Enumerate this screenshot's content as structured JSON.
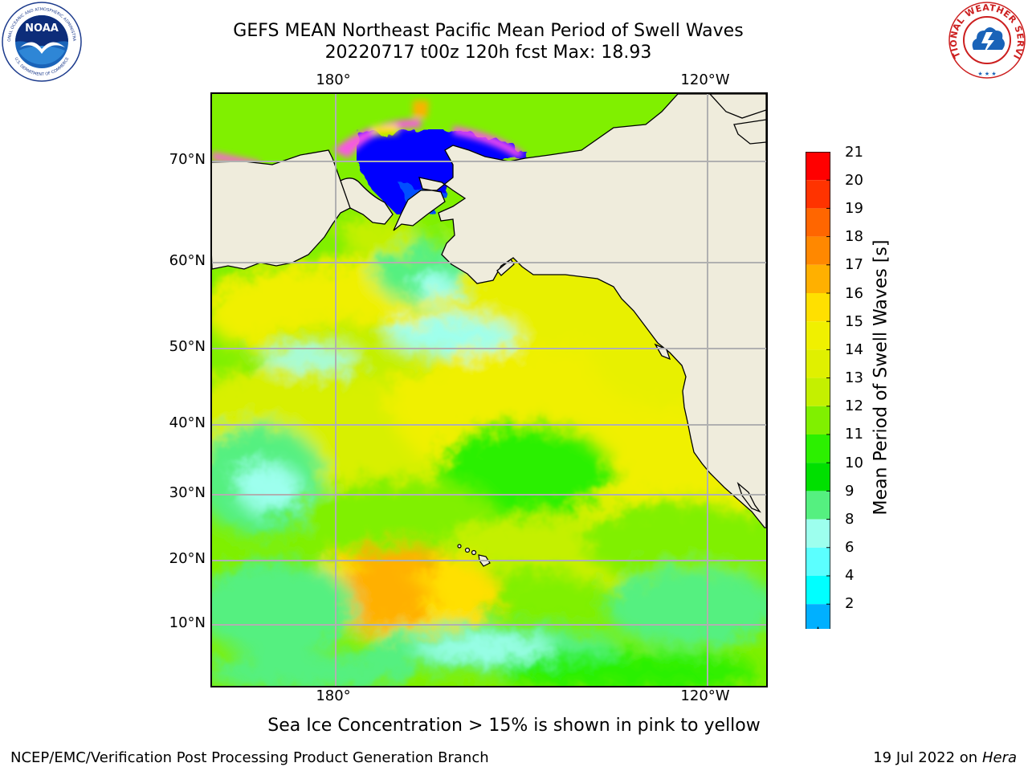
{
  "title": {
    "line1": "GEFS MEAN Northeast Pacific Mean Period of Swell Waves",
    "line2": "20220717 t00z 120h fcst   Max: 18.93"
  },
  "map": {
    "lon_labels": [
      "180°",
      "120°W"
    ],
    "lat_labels": [
      "70°N",
      "60°N",
      "50°N",
      "40°N",
      "30°N",
      "20°N",
      "10°N"
    ],
    "land_color": "#efecdc",
    "grid_color": "#b0b0b0"
  },
  "colorbar": {
    "axis_title": "Mean Period of Swell Waves [s]",
    "ticks": [
      "21",
      "20",
      "19",
      "18",
      "17",
      "16",
      "15",
      "14",
      "13",
      "12",
      "11",
      "10",
      "9",
      "8",
      "6",
      "4",
      "2"
    ],
    "colors_top_to_bottom": [
      "#ff0000",
      "#ff3300",
      "#ff6600",
      "#ff8800",
      "#ffb000",
      "#ffe000",
      "#f0f000",
      "#e0f000",
      "#c4f000",
      "#80f000",
      "#2cf000",
      "#00e000",
      "#55f080",
      "#9dffee",
      "#5bffff",
      "#00ffff",
      "#00b0ff",
      "#0050ff",
      "#0000ff"
    ],
    "under_color": "#0000ff"
  },
  "chart_data": {
    "type": "heatmap",
    "title": "GEFS MEAN Northeast Pacific Mean Period of Swell Waves",
    "subtitle": "20220717 t00z 120h fcst   Max: 18.93",
    "variable": "Mean Period of Swell Waves [s]",
    "max": 18.93,
    "lon_ticks": [
      "180°",
      "120°W"
    ],
    "lat_ticks": [
      "70°N",
      "60°N",
      "50°N",
      "40°N",
      "30°N",
      "20°N",
      "10°N"
    ],
    "levels": [
      2,
      4,
      6,
      8,
      9,
      10,
      11,
      12,
      13,
      14,
      15,
      16,
      17,
      18,
      19,
      20,
      21
    ]
  },
  "footnote": "Sea Ice Concentration > 15% is shown in pink to yellow",
  "credits": {
    "left": "NCEP/EMC/Verification Post Processing Product Generation Branch",
    "right_prefix": "19 Jul 2022 on ",
    "right_host": "Hera"
  },
  "logos": {
    "noaa_text": "NOAA",
    "noaa_ring_top": "NATIONAL OCEANIC AND ATMOSPHERIC ADMINISTRATION",
    "noaa_ring_bottom": "U.S. DEPARTMENT OF COMMERCE",
    "nws_ring": "NATIONAL WEATHER SERVICE"
  }
}
